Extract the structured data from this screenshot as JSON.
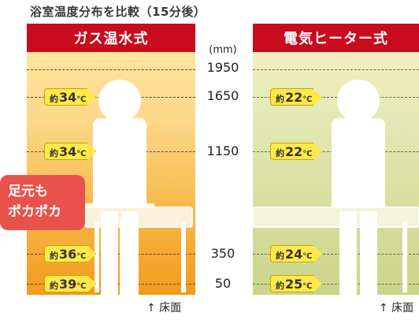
{
  "title": "浴室温度分布を比較（15分後）",
  "gas_panel": {
    "header": "ガス温水式",
    "badges": [
      {
        "prefix": "約",
        "value": "34",
        "unit": "℃"
      },
      {
        "prefix": "約",
        "value": "34",
        "unit": "℃"
      },
      {
        "prefix": "約",
        "value": "36",
        "unit": "℃"
      },
      {
        "prefix": "約",
        "value": "39",
        "unit": "℃"
      }
    ]
  },
  "elec_panel": {
    "header": "電気ヒーター式",
    "badges": [
      {
        "prefix": "約",
        "value": "22",
        "unit": "℃"
      },
      {
        "prefix": "約",
        "value": "22",
        "unit": "℃"
      },
      {
        "prefix": "約",
        "value": "24",
        "unit": "℃"
      },
      {
        "prefix": "約",
        "value": "25",
        "unit": "℃"
      }
    ]
  },
  "scale": {
    "unit": "(mm)",
    "heights": [
      "1950",
      "1650",
      "1150",
      "350",
      "50"
    ]
  },
  "floor_label": "↑ 床面",
  "callout": {
    "line1": "足元も",
    "line2": "ポカポカ"
  },
  "colors": {
    "header_red": "#c90b1d",
    "badge_yellow": "#ffe94a",
    "callout_red": "#e8524a"
  }
}
